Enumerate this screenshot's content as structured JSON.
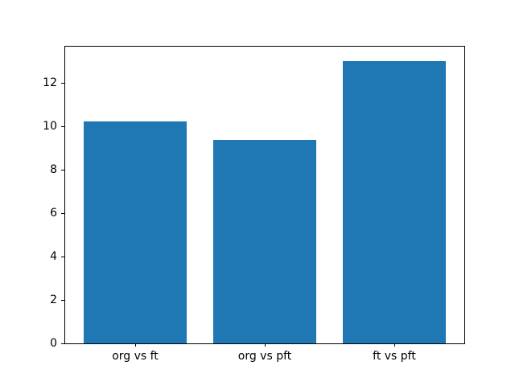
{
  "figure": {
    "background_color": "#ffffff"
  },
  "chart_data": {
    "type": "bar",
    "categories": [
      "org vs ft",
      "org vs pft",
      "ft vs pft"
    ],
    "values": [
      10.2,
      9.35,
      13.0
    ],
    "yticks": [
      0,
      2,
      4,
      6,
      8,
      10,
      12
    ],
    "ylim": [
      0,
      13.65
    ],
    "xlim": [
      -0.54,
      2.54
    ],
    "bar_width_fraction": 0.8,
    "bar_color": "#1f77b4",
    "grid": false,
    "legend": "none",
    "spine_color": "#000000",
    "tick_label_color": "#000000"
  }
}
